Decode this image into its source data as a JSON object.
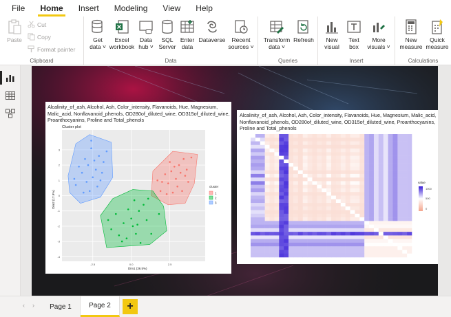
{
  "menu": {
    "tabs": [
      {
        "label": "File"
      },
      {
        "label": "Home",
        "active": true
      },
      {
        "label": "Insert"
      },
      {
        "label": "Modeling"
      },
      {
        "label": "View"
      },
      {
        "label": "Help"
      }
    ]
  },
  "ribbon": {
    "clipboard": {
      "label": "Clipboard",
      "paste": "Paste",
      "cut": "Cut",
      "copy": "Copy",
      "format_painter": "Format painter"
    },
    "data": {
      "label": "Data",
      "get_data": [
        "Get",
        "data ˅"
      ],
      "excel": [
        "Excel",
        "workbook"
      ],
      "data_hub": [
        "Data",
        "hub ˅"
      ],
      "sql": [
        "SQL",
        "Server"
      ],
      "enter_data": [
        "Enter",
        "data"
      ],
      "dataverse": [
        "Dataverse",
        ""
      ],
      "recent": [
        "Recent",
        "sources ˅"
      ]
    },
    "queries": {
      "label": "Queries",
      "transform": [
        "Transform",
        "data ˅"
      ],
      "refresh": [
        "Refresh",
        ""
      ]
    },
    "insert": {
      "label": "Insert",
      "new_visual": [
        "New",
        "visual"
      ],
      "text_box": [
        "Text",
        "box"
      ],
      "more_visuals": [
        "More",
        "visuals ˅"
      ]
    },
    "calculations": {
      "label": "Calculations",
      "new_measure": [
        "New",
        "measure"
      ],
      "quick_measure": [
        "Quick",
        "measure"
      ]
    }
  },
  "visuals": {
    "cluster": {
      "title": "Alcalinity_of_ash, Alcohol, Ash, Color_intensity, Flavanoids, Hue, Magnesium, Malic_acid, Nonflavanoid_phenols, OD280of_diluted_wine, OD315of_diluted_wine, Proanthocyanins, Proline and Total_phenols",
      "plot_title": "Cluster plot",
      "xlabel": "Dim1 (36.5%)",
      "ylabel": "Dim2 (17.9%)",
      "legend_title": "cluster",
      "legend_items": [
        "1",
        "2",
        "3"
      ],
      "colors": [
        "#f8766d",
        "#00ba38",
        "#619cff"
      ],
      "x_ticks": [
        "-2.5",
        "0.0",
        "2.5"
      ],
      "y_ticks": [
        "3",
        "2",
        "1",
        "0",
        "-1",
        "-2",
        "-3",
        "-4"
      ]
    },
    "heatmap": {
      "title": "Alcalinity_of_ash, Alcohol, Ash, Color_intensity, Flavanoids, Hue, Magnesium, Malic_acid, Nonflavanoid_phenols, OD280of_diluted_wine, OD315of_diluted_wine, Proanthocyanins, Proline and Total_phenols",
      "legend_title": "value",
      "legend_ticks": [
        "1000",
        "500",
        "0"
      ]
    }
  },
  "pages": {
    "tabs": [
      {
        "label": "Page 1"
      },
      {
        "label": "Page 2",
        "active": true
      }
    ],
    "add": "+"
  },
  "chart_data": [
    {
      "type": "scatter",
      "title": "Cluster plot",
      "xlabel": "Dim1 (36.5%)",
      "ylabel": "Dim2 (17.9%)",
      "xlim": [
        -4.5,
        4.8
      ],
      "ylim": [
        -4.3,
        4.3
      ],
      "series": [
        {
          "name": "1",
          "color": "#f8766d",
          "points": [
            [
              2.6,
              1.6
            ],
            [
              3.1,
              2.0
            ],
            [
              2.9,
              1.1
            ],
            [
              3.5,
              1.3
            ],
            [
              2.2,
              1.4
            ],
            [
              3.0,
              0.6
            ],
            [
              3.7,
              0.9
            ],
            [
              2.4,
              0.8
            ],
            [
              2.8,
              1.9
            ],
            [
              3.3,
              0.3
            ],
            [
              2.0,
              0.9
            ],
            [
              1.9,
              0.3
            ],
            [
              3.6,
              1.7
            ],
            [
              2.7,
              0.2
            ],
            [
              3.2,
              1.5
            ],
            [
              2.5,
              2.2
            ],
            [
              3.9,
              2.5
            ],
            [
              1.7,
              1.0
            ],
            [
              2.3,
              0.1
            ],
            [
              3.4,
              2.4
            ]
          ],
          "hull": [
            [
              1.4,
              1.6
            ],
            [
              2.7,
              2.9
            ],
            [
              4.3,
              2.7
            ],
            [
              4.1,
              0.8
            ],
            [
              3.5,
              -0.5
            ],
            [
              2.4,
              -0.6
            ],
            [
              1.3,
              0.0
            ]
          ]
        },
        {
          "name": "2",
          "color": "#00ba38",
          "points": [
            [
              0.0,
              -1.5
            ],
            [
              0.5,
              -1.0
            ],
            [
              -0.5,
              -1.8
            ],
            [
              0.3,
              -2.5
            ],
            [
              1.0,
              -1.6
            ],
            [
              -1.0,
              -1.2
            ],
            [
              0.8,
              -0.6
            ],
            [
              -0.2,
              -0.9
            ],
            [
              0.1,
              -2.0
            ],
            [
              -1.3,
              -2.2
            ],
            [
              1.3,
              -2.5
            ],
            [
              -0.6,
              -3.0
            ],
            [
              0.6,
              -3.1
            ],
            [
              1.8,
              -1.2
            ],
            [
              -1.5,
              -1.6
            ],
            [
              0.2,
              -0.3
            ],
            [
              1.1,
              -0.2
            ],
            [
              -0.8,
              -2.6
            ],
            [
              0.4,
              -1.9
            ],
            [
              -0.3,
              -2.8
            ]
          ],
          "hull": [
            [
              -2.0,
              -1.3
            ],
            [
              -1.2,
              -0.2
            ],
            [
              0.1,
              0.4
            ],
            [
              1.4,
              0.3
            ],
            [
              2.1,
              -0.7
            ],
            [
              2.3,
              -2.3
            ],
            [
              1.2,
              -3.2
            ],
            [
              -1.6,
              -3.4
            ]
          ]
        },
        {
          "name": "3",
          "color": "#619cff",
          "points": [
            [
              -2.8,
              2.0
            ],
            [
              -2.5,
              1.2
            ],
            [
              -3.2,
              1.5
            ],
            [
              -2.1,
              2.6
            ],
            [
              -3.6,
              0.7
            ],
            [
              -2.9,
              0.9
            ],
            [
              -2.3,
              1.7
            ],
            [
              -3.0,
              2.4
            ],
            [
              -2.6,
              3.1
            ],
            [
              -1.8,
              2.2
            ],
            [
              -3.4,
              1.9
            ],
            [
              -2.2,
              0.6
            ],
            [
              -3.7,
              1.1
            ],
            [
              -2.0,
              1.0
            ],
            [
              -2.7,
              0.3
            ],
            [
              -1.6,
              2.9
            ],
            [
              -2.4,
              2.3
            ],
            [
              -3.1,
              0.2
            ],
            [
              -1.9,
              1.5
            ],
            [
              -2.6,
              3.6
            ]
          ],
          "hull": [
            [
              -4.1,
              1.3
            ],
            [
              -3.6,
              3.4
            ],
            [
              -2.7,
              4.0
            ],
            [
              -1.3,
              3.5
            ],
            [
              -1.2,
              1.2
            ],
            [
              -2.0,
              -0.1
            ],
            [
              -3.3,
              -0.5
            ],
            [
              -4.0,
              0.2
            ]
          ]
        }
      ]
    },
    {
      "type": "heatmap",
      "title": "Alcalinity_of_ash, Alcohol, Ash, Color_intensity, Flavanoids, Hue, Magnesium, Malic_acid, Nonflavanoid_phenols, OD280of_diluted_wine, OD315of_diluted_wine, Proanthocyanins, Proline and Total_phenols",
      "legend": {
        "title": "value",
        "ticks": [
          1000,
          500,
          0
        ]
      },
      "value_range": [
        0,
        1200
      ]
    }
  ]
}
